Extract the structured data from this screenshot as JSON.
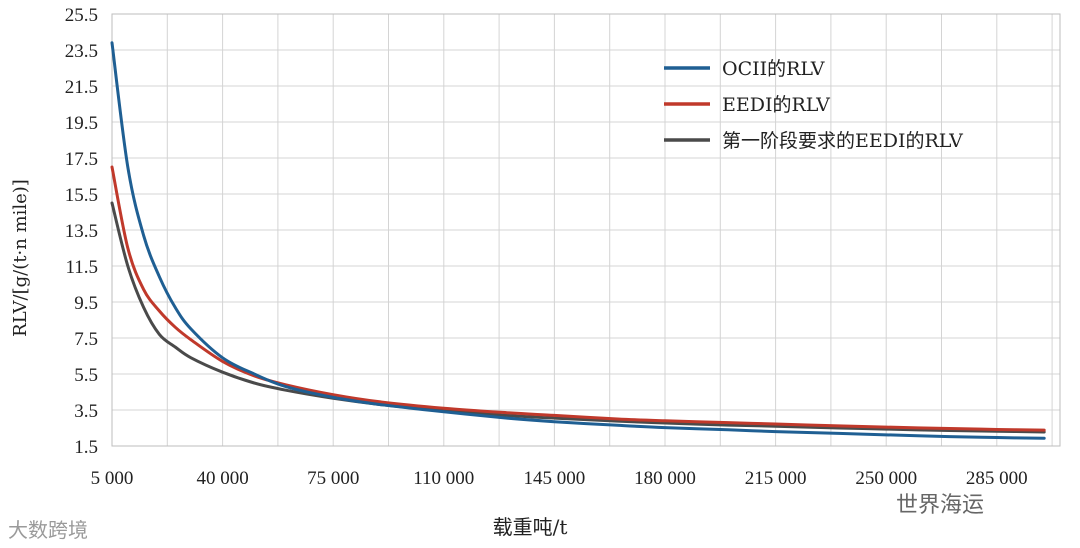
{
  "chart_data": {
    "type": "line",
    "title": "",
    "xlabel": "载重吨/t",
    "ylabel": "RLV/[g/(t·n mile)]",
    "xlim": [
      5000,
      305000
    ],
    "ylim": [
      1.5,
      25.5
    ],
    "xticks": [
      5000,
      40000,
      75000,
      110000,
      145000,
      180000,
      215000,
      250000,
      285000
    ],
    "xtick_labels": [
      "5 000",
      "40 000",
      "75 000",
      "110 000",
      "145 000",
      "180 000",
      "215 000",
      "250 000",
      "285 000"
    ],
    "yticks": [
      1.5,
      3.5,
      5.5,
      7.5,
      9.5,
      11.5,
      13.5,
      15.5,
      17.5,
      19.5,
      21.5,
      23.5,
      25.5
    ],
    "ytick_labels": [
      "1.5",
      "3.5",
      "5.5",
      "7.5",
      "9.5",
      "11.5",
      "13.5",
      "15.5",
      "17.5",
      "19.5",
      "21.5",
      "23.5",
      "25.5"
    ],
    "grid": true,
    "legend_position": "top-right",
    "series": [
      {
        "name": "OCII的RLV",
        "color": "#1f5f93",
        "x": [
          5000,
          10000,
          15000,
          20000,
          25000,
          30000,
          40000,
          50000,
          60000,
          75000,
          90000,
          110000,
          130000,
          145000,
          165000,
          180000,
          200000,
          215000,
          235000,
          250000,
          270000,
          285000,
          300000
        ],
        "y": [
          23.9,
          17.0,
          13.2,
          10.9,
          9.2,
          8.0,
          6.4,
          5.5,
          4.8,
          4.2,
          3.8,
          3.4,
          3.05,
          2.85,
          2.65,
          2.52,
          2.4,
          2.3,
          2.2,
          2.12,
          2.02,
          1.97,
          1.93
        ]
      },
      {
        "name": "EEDI的RLV",
        "color": "#c0392b",
        "x": [
          5000,
          10000,
          15000,
          20000,
          25000,
          30000,
          40000,
          50000,
          60000,
          75000,
          90000,
          110000,
          130000,
          145000,
          165000,
          180000,
          200000,
          215000,
          235000,
          250000,
          270000,
          285000,
          300000
        ],
        "y": [
          17.0,
          12.5,
          10.2,
          9.0,
          8.1,
          7.4,
          6.2,
          5.4,
          4.9,
          4.35,
          3.95,
          3.6,
          3.35,
          3.2,
          3.0,
          2.9,
          2.8,
          2.72,
          2.62,
          2.55,
          2.47,
          2.42,
          2.38
        ]
      },
      {
        "name": "第一阶段要求的EEDI的RLV",
        "color": "#4a4a4a",
        "x": [
          5000,
          10000,
          15000,
          20000,
          25000,
          30000,
          40000,
          50000,
          60000,
          75000,
          90000,
          110000,
          130000,
          145000,
          165000,
          180000,
          200000,
          215000,
          235000,
          250000,
          270000,
          285000,
          300000
        ],
        "y": [
          15.0,
          11.5,
          9.2,
          7.7,
          7.0,
          6.4,
          5.6,
          5.0,
          4.6,
          4.15,
          3.8,
          3.45,
          3.2,
          3.05,
          2.88,
          2.78,
          2.66,
          2.6,
          2.5,
          2.44,
          2.36,
          2.32,
          2.28
        ]
      }
    ]
  },
  "watermarks": {
    "left": "大数跨境",
    "right": "世界海运"
  }
}
